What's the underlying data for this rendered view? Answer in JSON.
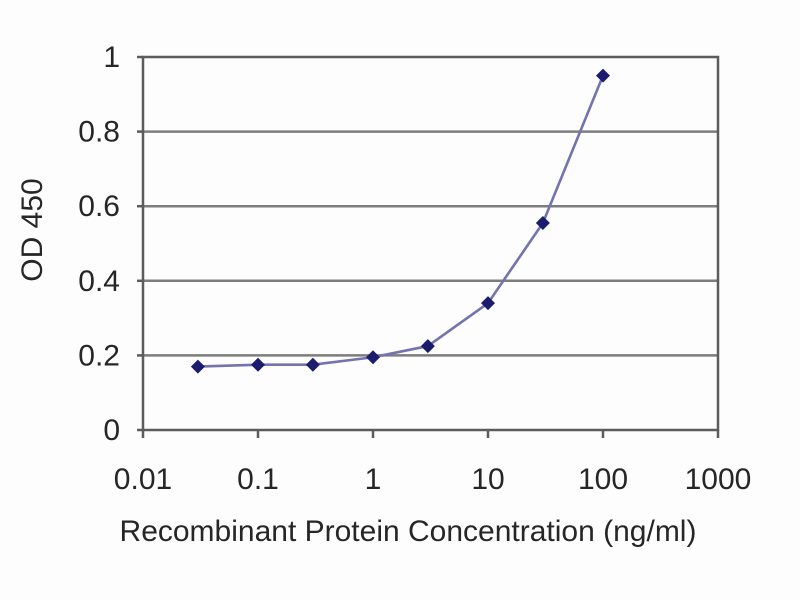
{
  "chart_data": {
    "type": "line",
    "title": "",
    "xlabel": "Recombinant Protein Concentration (ng/ml)",
    "ylabel": "OD 450",
    "x_scale": "log",
    "y_scale": "linear",
    "xlim": [
      0.01,
      1000
    ],
    "ylim": [
      0,
      1
    ],
    "x_tick_values": [
      0.01,
      0.1,
      1,
      10,
      100,
      1000
    ],
    "x_tick_labels": [
      "0.01",
      "0.1",
      "1",
      "10",
      "100",
      "1000"
    ],
    "y_tick_values": [
      0,
      0.2,
      0.4,
      0.6,
      0.8,
      1
    ],
    "y_tick_labels": [
      "0",
      "0.2",
      "0.4",
      "0.6",
      "0.8",
      "1"
    ],
    "grid": "horizontal",
    "legend": "none",
    "series": [
      {
        "marker": "diamond",
        "x": [
          0.03,
          0.1,
          0.3,
          1,
          3,
          10,
          30,
          100
        ],
        "y": [
          0.17,
          0.175,
          0.175,
          0.195,
          0.225,
          0.34,
          0.555,
          0.95
        ]
      }
    ],
    "colors": {
      "line": "#7373ad",
      "marker": "#1c1c6e",
      "grid": "#7d7d7d",
      "frame": "#5c5c5c",
      "tick": "#4a4a4a",
      "text": "#262626",
      "background": "#fdfdfd"
    }
  }
}
